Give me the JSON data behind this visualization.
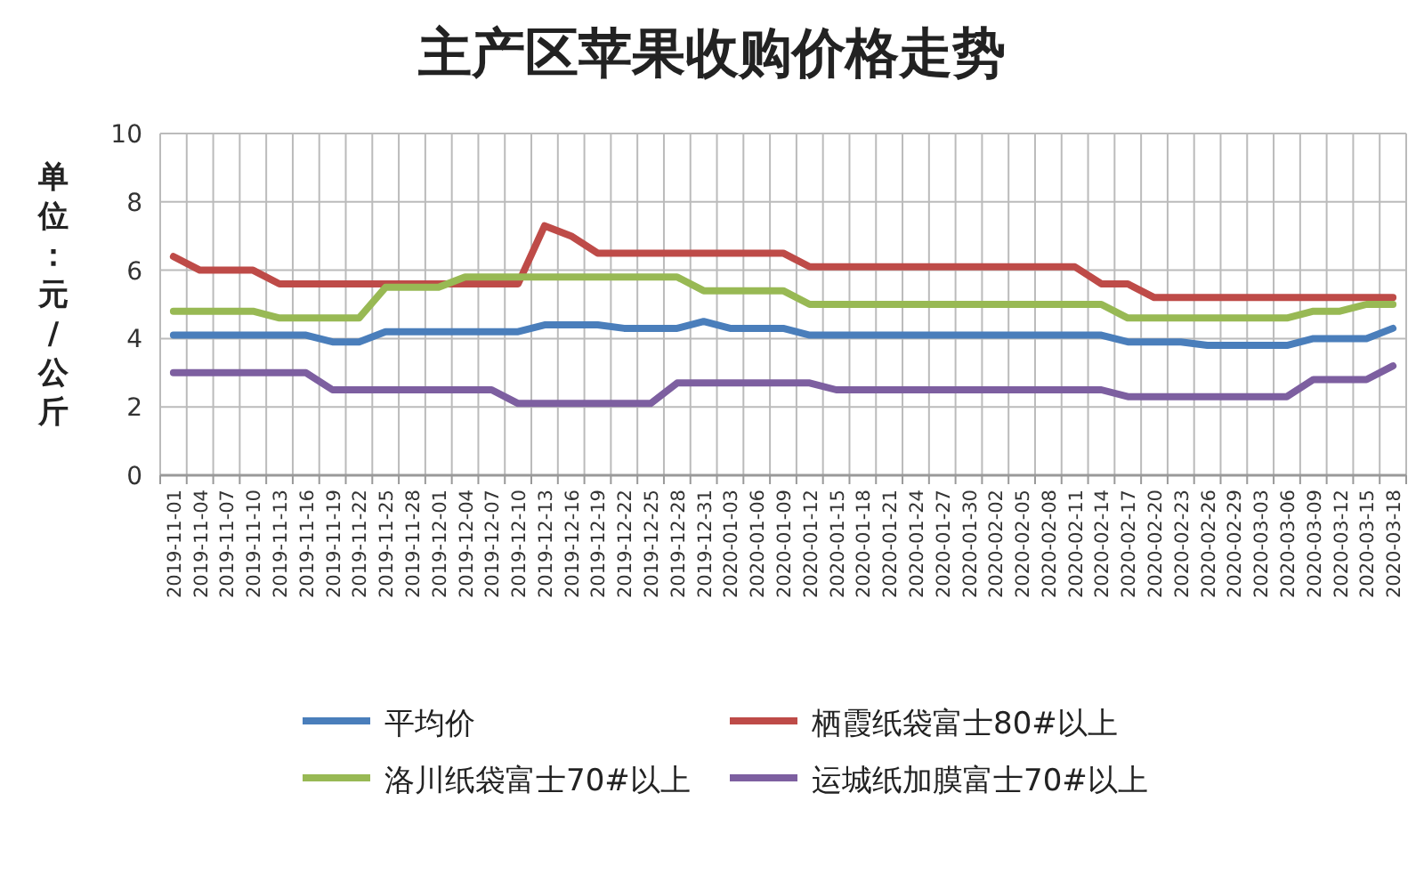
{
  "chart_data": {
    "type": "line",
    "title": "主产区苹果收购价格走势",
    "ylabel": "单位：元/公斤",
    "categories": [
      "2019-11-01",
      "2019-11-04",
      "2019-11-07",
      "2019-11-10",
      "2019-11-13",
      "2019-11-16",
      "2019-11-19",
      "2019-11-22",
      "2019-11-25",
      "2019-11-28",
      "2019-12-01",
      "2019-12-04",
      "2019-12-07",
      "2019-12-10",
      "2019-12-13",
      "2019-12-16",
      "2019-12-19",
      "2019-12-22",
      "2019-12-25",
      "2019-12-28",
      "2019-12-31",
      "2020-01-03",
      "2020-01-06",
      "2020-01-09",
      "2020-01-12",
      "2020-01-15",
      "2020-01-18",
      "2020-01-21",
      "2020-01-24",
      "2020-01-27",
      "2020-01-30",
      "2020-02-02",
      "2020-02-05",
      "2020-02-08",
      "2020-02-11",
      "2020-02-14",
      "2020-02-17",
      "2020-02-20",
      "2020-02-23",
      "2020-02-26",
      "2020-02-29",
      "2020-03-03",
      "2020-03-06",
      "2020-03-09",
      "2020-03-12",
      "2020-03-15",
      "2020-03-18"
    ],
    "series": [
      {
        "name": "平均价",
        "color": "#4a7ebb",
        "values": [
          4.1,
          4.1,
          4.1,
          4.1,
          4.1,
          4.1,
          3.9,
          3.9,
          4.2,
          4.2,
          4.2,
          4.2,
          4.2,
          4.2,
          4.4,
          4.4,
          4.4,
          4.3,
          4.3,
          4.3,
          4.5,
          4.3,
          4.3,
          4.3,
          4.1,
          4.1,
          4.1,
          4.1,
          4.1,
          4.1,
          4.1,
          4.1,
          4.1,
          4.1,
          4.1,
          4.1,
          3.9,
          3.9,
          3.9,
          3.8,
          3.8,
          3.8,
          3.8,
          4.0,
          4.0,
          4.0,
          4.3
        ]
      },
      {
        "name": "栖霞纸袋富士80#以上",
        "color": "#be4b48",
        "values": [
          6.4,
          6.0,
          6.0,
          6.0,
          5.6,
          5.6,
          5.6,
          5.6,
          5.6,
          5.6,
          5.6,
          5.6,
          5.6,
          5.6,
          7.3,
          7.0,
          6.5,
          6.5,
          6.5,
          6.5,
          6.5,
          6.5,
          6.5,
          6.5,
          6.1,
          6.1,
          6.1,
          6.1,
          6.1,
          6.1,
          6.1,
          6.1,
          6.1,
          6.1,
          6.1,
          5.6,
          5.6,
          5.2,
          5.2,
          5.2,
          5.2,
          5.2,
          5.2,
          5.2,
          5.2,
          5.2,
          5.2
        ]
      },
      {
        "name": "洛川纸袋富士70#以上",
        "color": "#98b954",
        "values": [
          4.8,
          4.8,
          4.8,
          4.8,
          4.6,
          4.6,
          4.6,
          4.6,
          5.5,
          5.5,
          5.5,
          5.8,
          5.8,
          5.8,
          5.8,
          5.8,
          5.8,
          5.8,
          5.8,
          5.8,
          5.4,
          5.4,
          5.4,
          5.4,
          5.0,
          5.0,
          5.0,
          5.0,
          5.0,
          5.0,
          5.0,
          5.0,
          5.0,
          5.0,
          5.0,
          5.0,
          4.6,
          4.6,
          4.6,
          4.6,
          4.6,
          4.6,
          4.6,
          4.8,
          4.8,
          5.0,
          5.0
        ]
      },
      {
        "name": "运城纸加膜富士70#以上",
        "color": "#7d5fa0",
        "values": [
          3.0,
          3.0,
          3.0,
          3.0,
          3.0,
          3.0,
          2.5,
          2.5,
          2.5,
          2.5,
          2.5,
          2.5,
          2.5,
          2.1,
          2.1,
          2.1,
          2.1,
          2.1,
          2.1,
          2.7,
          2.7,
          2.7,
          2.7,
          2.7,
          2.7,
          2.5,
          2.5,
          2.5,
          2.5,
          2.5,
          2.5,
          2.5,
          2.5,
          2.5,
          2.5,
          2.5,
          2.3,
          2.3,
          2.3,
          2.3,
          2.3,
          2.3,
          2.3,
          2.8,
          2.8,
          2.8,
          3.2
        ]
      }
    ],
    "ylim": [
      0,
      10
    ],
    "yticks": [
      0,
      2,
      4,
      6,
      8,
      10
    ],
    "grid": true,
    "legend": "bottom",
    "marker": "none",
    "line_style": "solid"
  }
}
